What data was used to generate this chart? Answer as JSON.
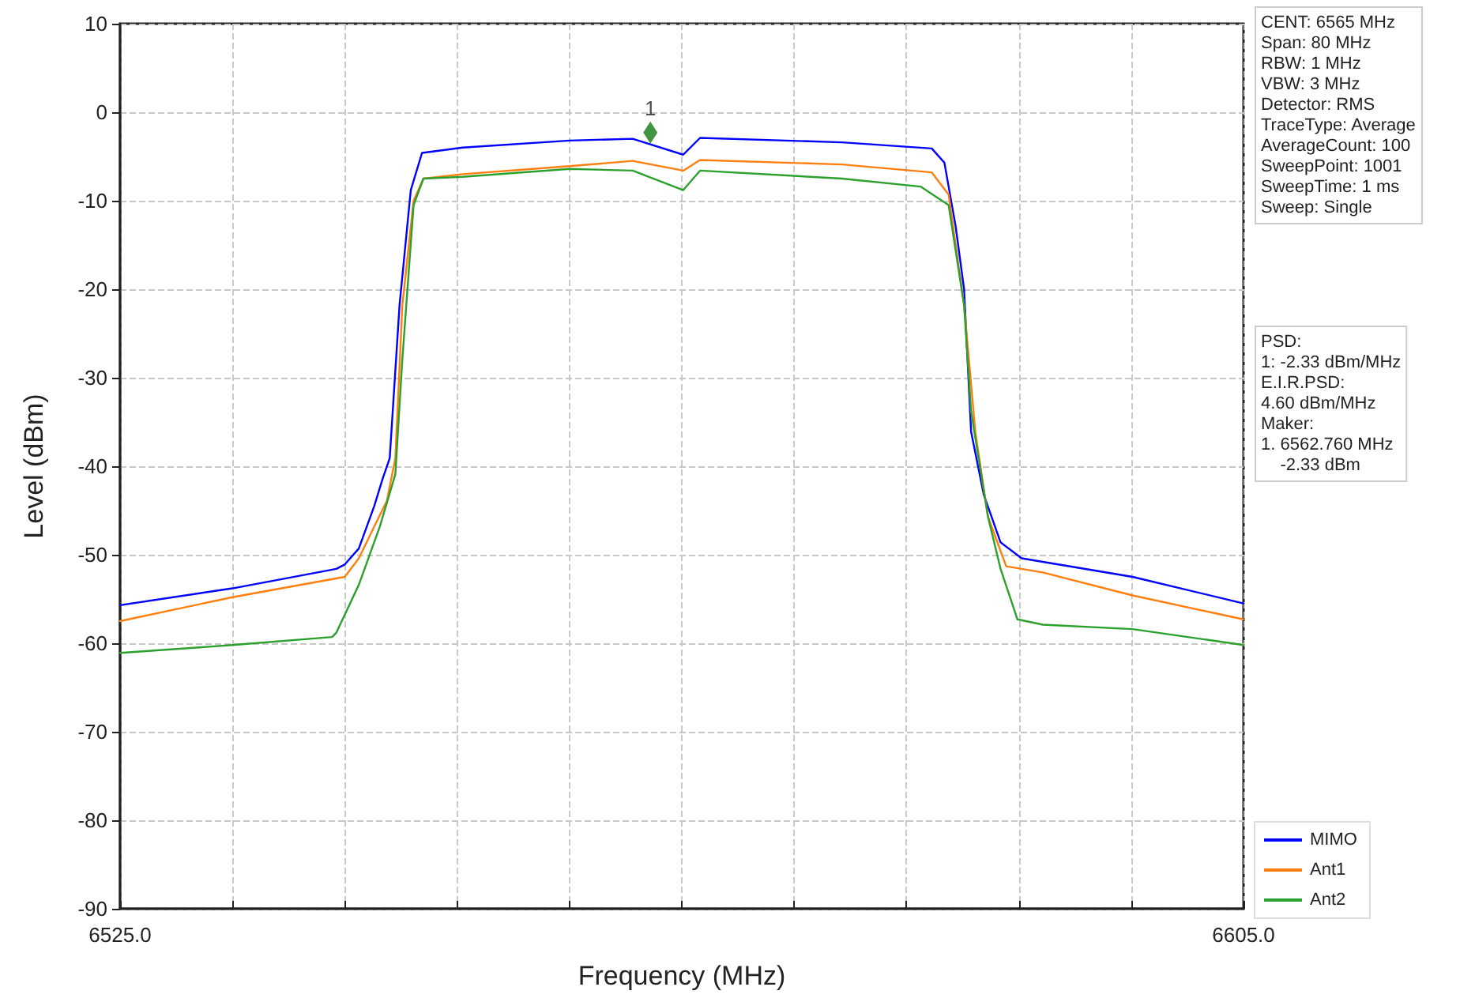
{
  "chart_data": {
    "type": "line",
    "xlabel": "Frequency (MHz)",
    "ylabel": "Level (dBm)",
    "xlim": [
      6525,
      6605
    ],
    "xticks": [
      {
        "value": 6525,
        "label": "6525.0"
      },
      {
        "value": 6533,
        "label": null
      },
      {
        "value": 6541,
        "label": null
      },
      {
        "value": 6549,
        "label": null
      },
      {
        "value": 6557,
        "label": null
      },
      {
        "value": 6565,
        "label": null
      },
      {
        "value": 6573,
        "label": null
      },
      {
        "value": 6581,
        "label": null
      },
      {
        "value": 6589,
        "label": null
      },
      {
        "value": 6597,
        "label": null
      },
      {
        "value": 6605,
        "label": "6605.0"
      }
    ],
    "ylim": [
      -90,
      10
    ],
    "yticks": [
      -90,
      -80,
      -70,
      -60,
      -50,
      -40,
      -30,
      -20,
      -10,
      0,
      10
    ],
    "grid": true,
    "legend": "bottom right",
    "marker": "none",
    "line_style": "solid",
    "series": [
      {
        "name": "MIMO",
        "color": "#0000ff",
        "x": [
          6525,
          6533.0,
          6540.4,
          6541.0,
          6542.0,
          6543.1,
          6543.7,
          6544.2,
          6544.9,
          6545.7,
          6546.5,
          6549.4,
          6557.0,
          6561.5,
          6565.1,
          6566.3,
          6576.4,
          6582.8,
          6583.7,
          6584.5,
          6585.1,
          6585.6,
          6586.5,
          6587.7,
          6589.2,
          6597.1,
          6605
        ],
        "values": [
          -55.7,
          -53.8,
          -51.6,
          -51.1,
          -49.3,
          -44.5,
          -41.4,
          -39.1,
          -21.8,
          -8.8,
          -4.6,
          -4.0,
          -3.2,
          -3.0,
          -4.8,
          -2.9,
          -3.4,
          -4.1,
          -5.7,
          -12.9,
          -20.0,
          -36.1,
          -43.2,
          -48.6,
          -50.4,
          -52.5,
          -55.5
        ]
      },
      {
        "name": "Ant1",
        "color": "#ff7f0e",
        "x": [
          6525,
          6533.0,
          6541.0,
          6542.0,
          6543.1,
          6544.0,
          6544.6,
          6545.1,
          6545.9,
          6546.6,
          6549.4,
          6557.0,
          6561.5,
          6565.1,
          6566.3,
          6576.4,
          6582.8,
          6584.0,
          6585.1,
          6585.9,
          6586.8,
          6588.1,
          6590.7,
          6597.1,
          6605
        ],
        "values": [
          -57.5,
          -54.8,
          -52.5,
          -50.4,
          -46.8,
          -43.9,
          -39.1,
          -21.8,
          -10.0,
          -7.5,
          -7.0,
          -6.1,
          -5.5,
          -6.6,
          -5.4,
          -5.9,
          -6.8,
          -9.3,
          -21.8,
          -36.1,
          -45.7,
          -51.3,
          -52.0,
          -54.6,
          -57.3
        ]
      },
      {
        "name": "Ant2",
        "color": "#2ca02c",
        "x": [
          6525,
          6533.0,
          6540.1,
          6540.4,
          6542.0,
          6543.5,
          6544.6,
          6545.1,
          6545.9,
          6546.6,
          6549.4,
          6557.0,
          6561.5,
          6565.1,
          6566.3,
          6576.4,
          6582.0,
          6584.0,
          6585.1,
          6585.6,
          6586.8,
          6587.7,
          6588.9,
          6590.7,
          6597.1,
          6605
        ],
        "values": [
          -61.1,
          -60.2,
          -59.3,
          -58.8,
          -53.4,
          -46.8,
          -40.9,
          -27.9,
          -10.5,
          -7.5,
          -7.3,
          -6.4,
          -6.6,
          -8.8,
          -6.6,
          -7.5,
          -8.4,
          -10.5,
          -21.8,
          -33.8,
          -45.7,
          -51.6,
          -57.3,
          -57.9,
          -58.4,
          -60.2
        ]
      },
      {
        "type": "scatter",
        "name": "1",
        "color": "#127a12",
        "marker": "diamond",
        "x": [
          6562.76
        ],
        "values": [
          -2.3
        ]
      }
    ],
    "annotations": [
      "CENT: 6565 MHz\nSpan: 80 MHz\nRBW: 1 MHz\nVBW: 3 MHz\nDetector: RMS\nTraceType: Average\nAverageCount: 100\nSweepPoint: 1001\nSweepTime: 1 ms\nSweep: Single",
      "PSD:\n1: -2.33 dBm/MHz\nE.I.R.PSD:\n4.60 dBm/MHz\nMaker:\n1. 6562.760 MHz\n    -2.33 dBm"
    ]
  }
}
